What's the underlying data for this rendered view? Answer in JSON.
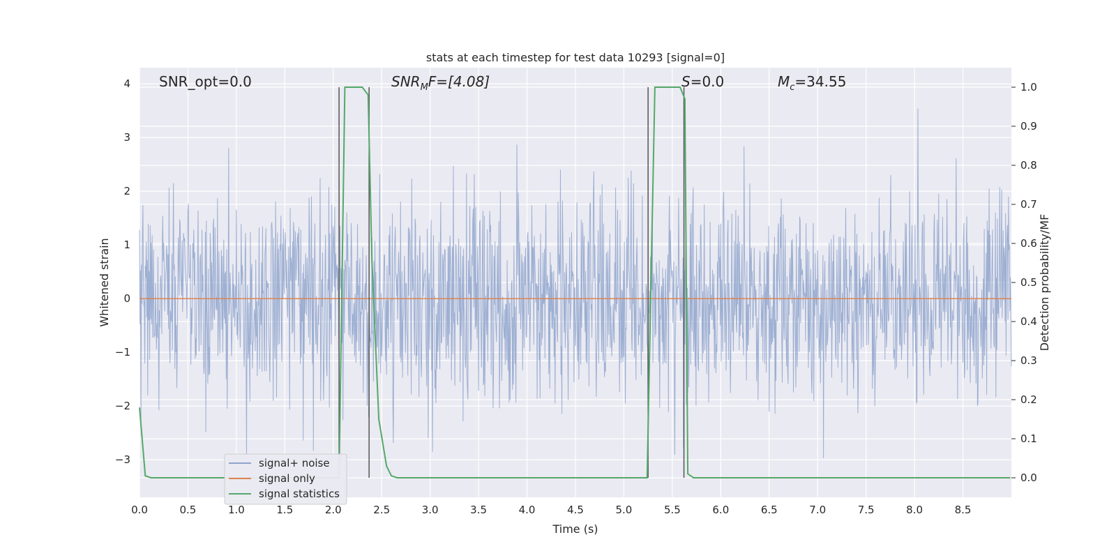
{
  "chart_data": {
    "type": "line",
    "title": "stats at each timestep for test data 10293 [signal=0]",
    "xlabel": "Time (s)",
    "ylabel": "Whitened strain",
    "ylabel_right": "Detection probability/MF",
    "xlim": [
      0.0,
      9.0
    ],
    "ylim": [
      -3.7,
      4.3
    ],
    "ylim_right": [
      -0.05,
      1.05
    ],
    "x_ticks": [
      "0.0",
      "0.5",
      "1.0",
      "1.5",
      "2.0",
      "2.5",
      "3.0",
      "3.5",
      "4.0",
      "4.5",
      "5.0",
      "5.5",
      "6.0",
      "6.5",
      "7.0",
      "7.5",
      "8.0",
      "8.5"
    ],
    "x_tick_values": [
      0,
      0.5,
      1,
      1.5,
      2,
      2.5,
      3,
      3.5,
      4,
      4.5,
      5,
      5.5,
      6,
      6.5,
      7,
      7.5,
      8,
      8.5
    ],
    "y_ticks": [
      "4",
      "3",
      "2",
      "1",
      "0",
      "−1",
      "−2",
      "−3"
    ],
    "y_tick_values": [
      4,
      3,
      2,
      1,
      0,
      -1,
      -2,
      -3
    ],
    "y_ticks_right": [
      "1.0",
      "0.9",
      "0.8",
      "0.7",
      "0.6",
      "0.5",
      "0.4",
      "0.3",
      "0.2",
      "0.1",
      "0.0"
    ],
    "y_tick_values_right": [
      1.0,
      0.9,
      0.8,
      0.7,
      0.6,
      0.5,
      0.4,
      0.3,
      0.2,
      0.1,
      0.0
    ],
    "grid": true,
    "legend_placement": "lower-left",
    "annotations": {
      "snr_opt": "SNR_opt=0.0",
      "snr_mf_main": "SNR",
      "snr_mf_sub": "M",
      "snr_mf_rest": "F=[4.08]",
      "s_italic": "S",
      "s_rest": "=0.0",
      "mc_main": "M",
      "mc_sub": "c",
      "mc_rest": "=34.55"
    },
    "series": [
      {
        "name": "signal+ noise",
        "color": "#8fa4cc",
        "kind": "noise",
        "amplitude_sd": 0.95,
        "sample_rate_hz": 200
      },
      {
        "name": "signal only",
        "color": "#dd8452",
        "x": [
          0.0,
          9.0
        ],
        "y": [
          0.0,
          0.0
        ]
      },
      {
        "name": "signal statistics",
        "color": "#55a868",
        "axis": "right",
        "x": [
          0.0,
          0.06,
          0.12,
          0.18,
          2.06,
          2.09,
          2.12,
          2.16,
          2.3,
          2.36,
          2.4,
          2.47,
          2.55,
          2.6,
          2.66,
          2.72,
          5.24,
          5.28,
          5.32,
          5.46,
          5.58,
          5.63,
          5.66,
          5.72,
          8.99
        ],
        "y": [
          0.18,
          0.005,
          0.0,
          0.0,
          0.0,
          0.5,
          1.0,
          1.0,
          1.0,
          0.98,
          0.55,
          0.15,
          0.03,
          0.005,
          0.0,
          0.0,
          0.0,
          0.5,
          1.0,
          1.0,
          1.0,
          0.97,
          0.01,
          0.0,
          0.0
        ]
      }
    ],
    "vertical_lines": [
      {
        "x": 2.06,
        "color": "#555555"
      },
      {
        "x": 2.37,
        "color": "#555555"
      },
      {
        "x": 5.25,
        "color": "#555555"
      },
      {
        "x": 5.62,
        "color": "#555555"
      }
    ]
  },
  "colors": {
    "plot_background": "#eaeaf2",
    "grid": "#ffffff",
    "text": "#262626"
  }
}
